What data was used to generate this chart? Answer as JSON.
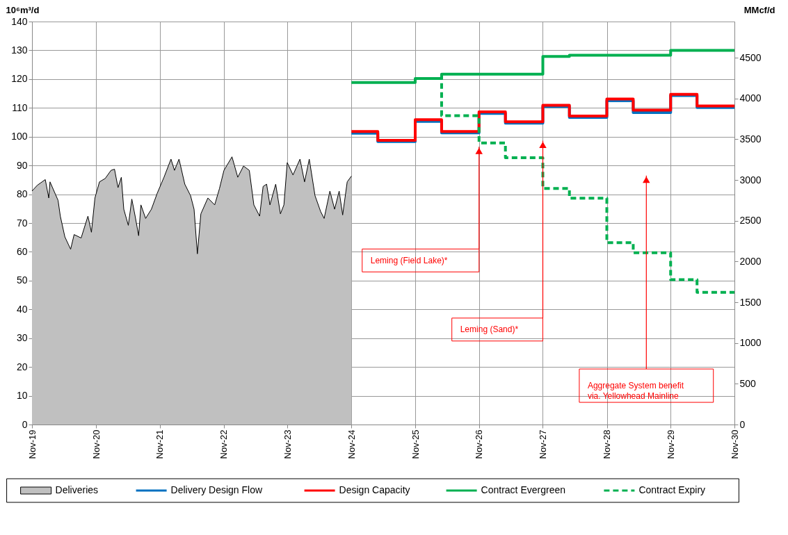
{
  "chart_data": {
    "type": "area",
    "ylabel": "10⁶m³/d",
    "y2label": "MMcf/d",
    "xlim": [
      "2019-11-01",
      "2030-11-01"
    ],
    "xticks": [
      {
        "value": "2019-11-01",
        "label": "Nov-19"
      },
      {
        "value": "2020-11-01",
        "label": "Nov-20"
      },
      {
        "value": "2021-11-01",
        "label": "Nov-21"
      },
      {
        "value": "2022-11-01",
        "label": "Nov-22"
      },
      {
        "value": "2023-11-01",
        "label": "Nov-23"
      },
      {
        "value": "2024-11-01",
        "label": "Nov-24"
      },
      {
        "value": "2025-11-01",
        "label": "Nov-25"
      },
      {
        "value": "2026-11-01",
        "label": "Nov-26"
      },
      {
        "value": "2027-11-01",
        "label": "Nov-27"
      },
      {
        "value": "2028-11-01",
        "label": "Nov-28"
      },
      {
        "value": "2029-11-01",
        "label": "Nov-29"
      },
      {
        "value": "2030-11-01",
        "label": "Nov-30"
      }
    ],
    "ylim": [
      0,
      140
    ],
    "yticks": [
      0,
      10,
      20,
      30,
      40,
      50,
      60,
      70,
      80,
      90,
      100,
      110,
      120,
      130,
      140
    ],
    "y2lim": [
      0,
      4944
    ],
    "y2ticks": [
      0,
      500,
      1000,
      1500,
      2000,
      2500,
      3000,
      3500,
      4000,
      4500
    ],
    "grid": true,
    "legend": "bottom",
    "series": [
      {
        "name": "Deliveries",
        "color": "#c0c0c0",
        "x": [
          "2019-11-01",
          "2019-12-01",
          "2020-01-16",
          "2020-02-05",
          "2020-02-12",
          "2020-03-29",
          "2020-04-11",
          "2020-05-07",
          "2020-06-09",
          "2020-06-29",
          "2020-08-08",
          "2020-09-16",
          "2020-10-06",
          "2020-10-26",
          "2020-11-21",
          "2020-12-24",
          "2021-01-26",
          "2021-02-15",
          "2021-03-07",
          "2021-03-26",
          "2021-04-09",
          "2021-05-05",
          "2021-05-25",
          "2021-06-13",
          "2021-07-03",
          "2021-07-16",
          "2021-08-12",
          "2021-09-14",
          "2021-10-17",
          "2021-11-25",
          "2022-01-04",
          "2022-01-24",
          "2022-02-19",
          "2022-03-24",
          "2022-04-26",
          "2022-05-16",
          "2022-06-04",
          "2022-06-24",
          "2022-08-03",
          "2022-09-11",
          "2022-10-08",
          "2022-11-03",
          "2022-12-19",
          "2023-01-21",
          "2023-02-23",
          "2023-03-28",
          "2023-04-23",
          "2023-05-26",
          "2023-06-15",
          "2023-07-05",
          "2023-07-24",
          "2023-08-26",
          "2023-09-22",
          "2023-10-12",
          "2023-10-31",
          "2023-12-03",
          "2024-01-12",
          "2024-02-07",
          "2024-03-05",
          "2024-04-07",
          "2024-05-09",
          "2024-05-29",
          "2024-07-01",
          "2024-07-28",
          "2024-08-23",
          "2024-09-12",
          "2024-10-08",
          "2024-11-01"
        ],
        "values": [
          81.1,
          83.1,
          85.1,
          78.7,
          84.3,
          77.9,
          72.4,
          65.2,
          60.9,
          66.0,
          64.8,
          72.4,
          66.8,
          78.7,
          84.3,
          85.5,
          88.3,
          88.7,
          82.3,
          85.9,
          74.8,
          69.2,
          78.3,
          72.4,
          65.6,
          76.3,
          71.6,
          74.8,
          80.3,
          85.9,
          92.2,
          88.3,
          92.2,
          83.5,
          79.5,
          74.8,
          59.3,
          73.2,
          78.7,
          76.3,
          81.9,
          88.3,
          93.0,
          85.9,
          89.8,
          88.3,
          76.3,
          72.4,
          82.7,
          83.5,
          76.3,
          83.5,
          73.2,
          76.3,
          91.0,
          86.7,
          92.2,
          84.3,
          92.2,
          79.5,
          74.0,
          71.6,
          81.1,
          74.8,
          81.1,
          72.8,
          84.3,
          86.3
        ]
      },
      {
        "name": "Delivery Design Flow",
        "type": "step",
        "color": "#0070c0",
        "x": [
          "2024-11-01",
          "2025-04-01",
          "2025-11-01",
          "2026-04-01",
          "2026-11-01",
          "2027-04-01",
          "2027-11-01",
          "2028-04-01",
          "2028-11-01",
          "2029-04-01",
          "2029-11-01",
          "2030-04-01",
          "2030-11-01"
        ],
        "values": [
          101.2,
          98.3,
          105.3,
          101.3,
          108.1,
          104.7,
          110.5,
          106.7,
          112.5,
          108.4,
          114.3,
          110.1,
          110.1
        ]
      },
      {
        "name": "Design Capacity",
        "type": "step",
        "color": "#ff0000",
        "x": [
          "2024-11-01",
          "2025-04-01",
          "2025-11-01",
          "2026-04-01",
          "2026-11-01",
          "2027-04-01",
          "2027-11-01",
          "2028-04-01",
          "2028-11-01",
          "2029-04-01",
          "2029-11-01",
          "2030-04-01",
          "2030-11-01"
        ],
        "values": [
          101.8,
          98.7,
          105.9,
          101.8,
          108.6,
          105.2,
          110.9,
          107.2,
          113.1,
          109.2,
          114.7,
          110.7,
          110.7
        ]
      },
      {
        "name": "Contract Evergreen",
        "type": "step",
        "color": "#00b050",
        "x": [
          "2024-11-01",
          "2025-11-01",
          "2026-04-01",
          "2027-11-01",
          "2028-04-01",
          "2029-11-01",
          "2030-11-01"
        ],
        "values": [
          118.8,
          120.2,
          121.7,
          127.9,
          128.3,
          130.0,
          130.0
        ]
      },
      {
        "name": "Contract Expiry",
        "type": "step",
        "line_style": "dashed",
        "color": "#00b050",
        "x": [
          "2026-04-01",
          "2026-04-01",
          "2026-11-01",
          "2027-04-01",
          "2027-11-01",
          "2028-04-01",
          "2028-11-01",
          "2029-04-01",
          "2029-11-01",
          "2030-04-01",
          "2030-11-01"
        ],
        "values": [
          121.7,
          107.3,
          97.8,
          92.7,
          82.0,
          78.6,
          63.2,
          59.7,
          50.3,
          45.9,
          45.9
        ]
      }
    ],
    "annotations": [
      "Leming (Field Lake)*",
      "Leming (Sand)*",
      "Aggregate System benefit\nvia. Yellowhead Mainline"
    ]
  }
}
